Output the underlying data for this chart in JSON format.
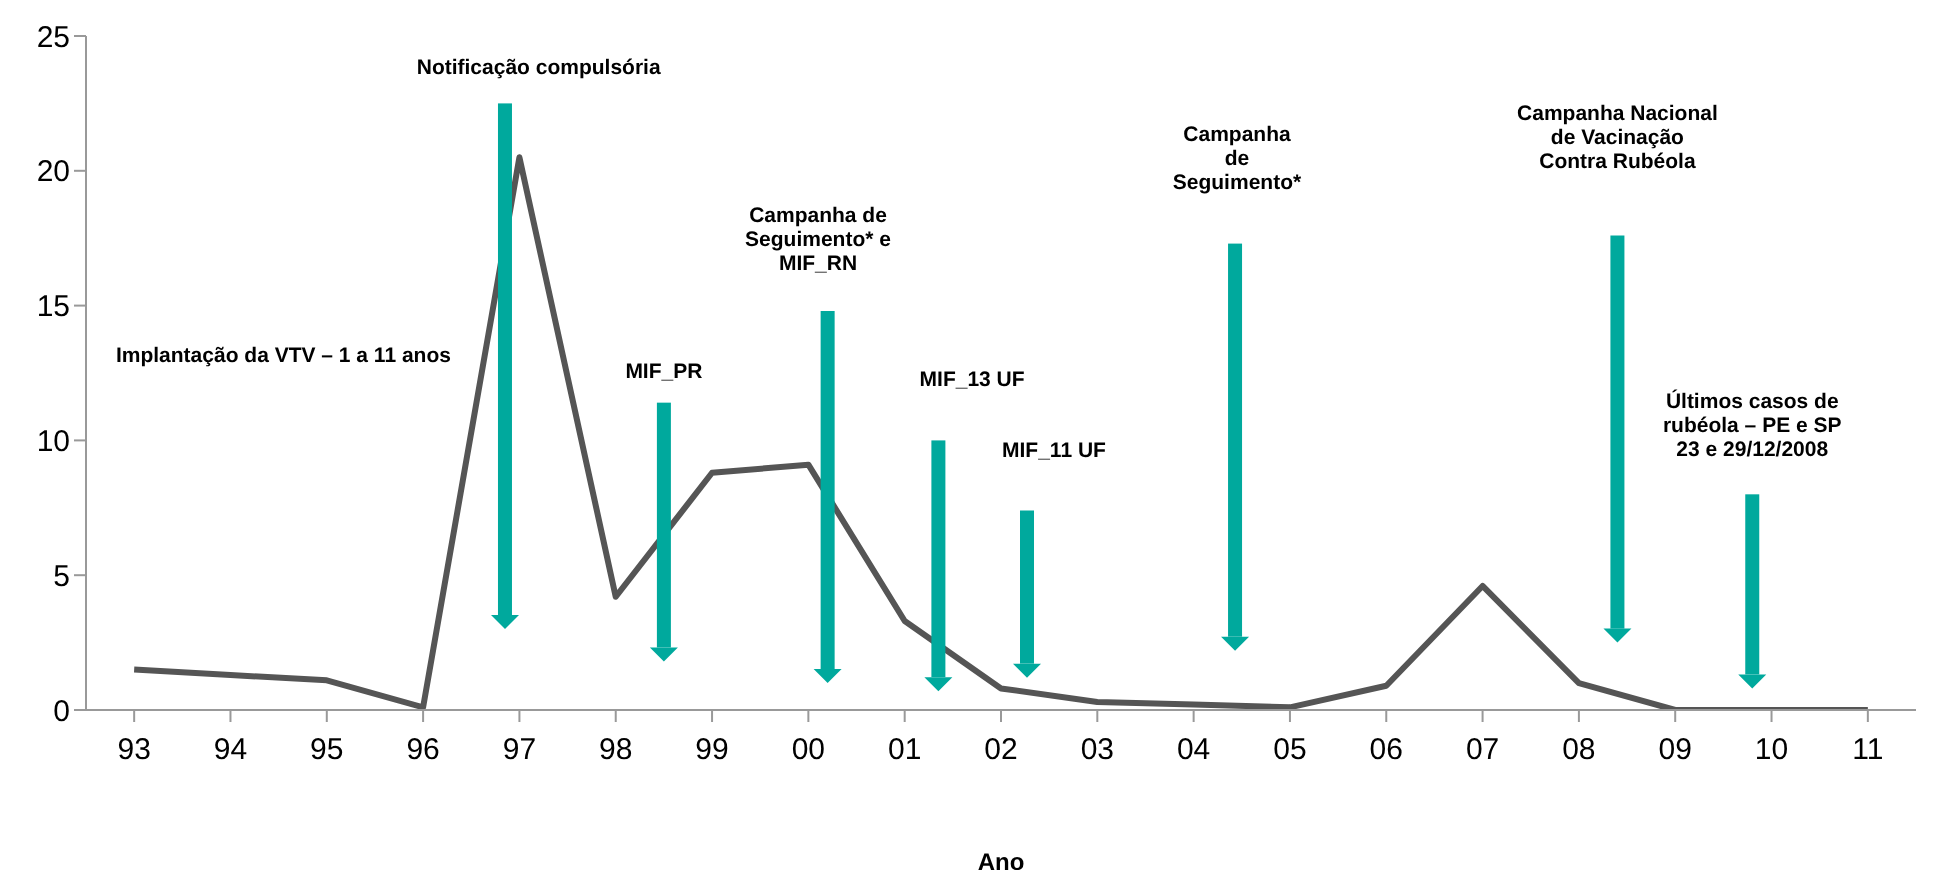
{
  "chart_data": {
    "type": "line",
    "xlabel": "Ano",
    "categories": [
      "93",
      "94",
      "95",
      "96",
      "97",
      "98",
      "99",
      "00",
      "01",
      "02",
      "03",
      "04",
      "05",
      "06",
      "07",
      "08",
      "09",
      "10",
      "11"
    ],
    "series": [
      {
        "color": "#555555",
        "values": [
          1.5,
          1.3,
          1.1,
          0.1,
          20.5,
          4.2,
          8.8,
          9.1,
          3.3,
          0.8,
          0.3,
          0.2,
          0.1,
          0.9,
          4.6,
          1.0,
          0,
          0,
          0
        ]
      }
    ],
    "ylim": [
      0,
      25
    ],
    "yticks": [
      0,
      5,
      10,
      15,
      20,
      25
    ],
    "grid": false,
    "legend": false,
    "marker": "none",
    "line_style": "solid",
    "annotations": [
      "Notificação compulsória",
      "Implantação da VTV – 1 a 11 anos",
      "MIF_PR",
      "Campanha de\nSeguimento* e\nMIF_RN",
      "MIF_13 UF",
      "MIF_11 UF",
      "Campanha\nde\nSeguimento*",
      "Campanha Nacional\nde Vacinação\nContra Rubéola",
      "Últimos casos de\nrubéola – PE e SP\n23 e 29/12/2008"
    ]
  }
}
